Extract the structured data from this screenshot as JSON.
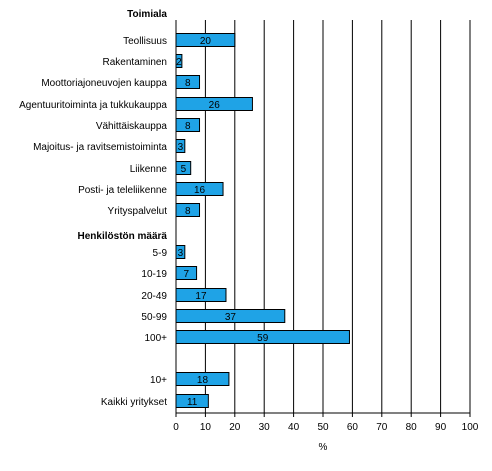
{
  "chart_data": {
    "type": "bar",
    "orientation": "horizontal",
    "xlabel": "%",
    "xlim": [
      0,
      100
    ],
    "xticks": [
      0,
      10,
      20,
      30,
      40,
      50,
      60,
      70,
      80,
      90,
      100
    ],
    "grid": "vertical",
    "bar_color": "#1fa3e6",
    "bar_edge_color": "#000000",
    "groups": [
      {
        "title": "Toimiala",
        "rows": [
          {
            "label": "Teollisuus",
            "value": 20
          },
          {
            "label": "Rakentaminen",
            "value": 2
          },
          {
            "label": "Moottoriajoneuvojen kauppa",
            "value": 8
          },
          {
            "label": "Agentuuritoiminta ja tukkukauppa",
            "value": 26
          },
          {
            "label": "Vähittäiskauppa",
            "value": 8
          },
          {
            "label": "Majoitus- ja ravitsemistoiminta",
            "value": 3
          },
          {
            "label": "Liikenne",
            "value": 5
          },
          {
            "label": "Posti- ja teleliikenne",
            "value": 16
          },
          {
            "label": "Yrityspalvelut",
            "value": 8
          }
        ]
      },
      {
        "title": "Henkilöstön määrä",
        "rows": [
          {
            "label": "5-9",
            "value": 3
          },
          {
            "label": "10-19",
            "value": 7
          },
          {
            "label": "20-49",
            "value": 17
          },
          {
            "label": "50-99",
            "value": 37
          },
          {
            "label": "100+",
            "value": 59
          }
        ]
      },
      {
        "title": "",
        "rows": [
          {
            "label": "10+",
            "value": 18
          },
          {
            "label": "Kaikki yritykset",
            "value": 11
          }
        ]
      }
    ]
  }
}
